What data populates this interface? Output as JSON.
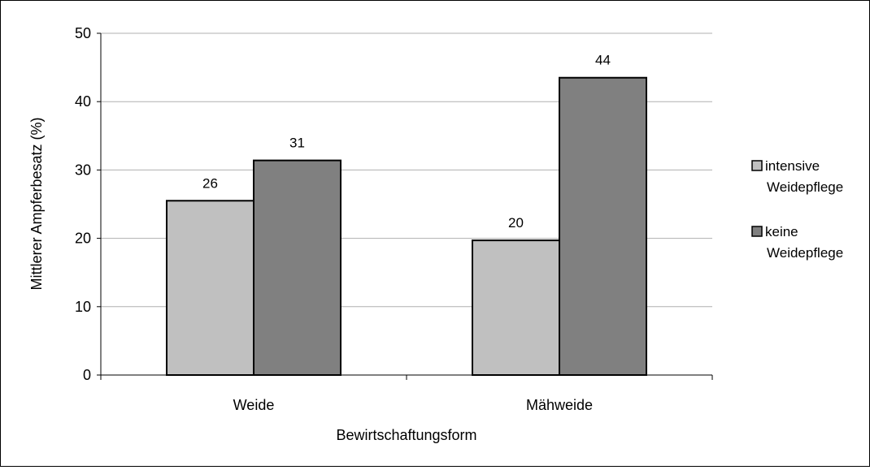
{
  "chart_data": {
    "type": "bar",
    "title": "",
    "xlabel": "Bewirtschaftungsform",
    "ylabel": "Mittlerer Ampferbesatz (%)",
    "categories": [
      "Weide",
      "Mähweide"
    ],
    "series": [
      {
        "name": "intensive Weidepflege",
        "legend_lines": [
          "intensive",
          "Weidepflege"
        ],
        "color": "#c0c0c0",
        "values": [
          25.5,
          19.7
        ],
        "labels": [
          "26",
          "20"
        ]
      },
      {
        "name": "keine Weidepflege",
        "legend_lines": [
          "keine",
          "Weidepflege"
        ],
        "color": "#808080",
        "values": [
          31.4,
          43.5
        ],
        "labels": [
          "31",
          "44"
        ]
      }
    ],
    "ylim": [
      0,
      50
    ],
    "yticks": [
      0,
      10,
      20,
      30,
      40,
      50
    ],
    "grid": true,
    "legend_position": "right"
  }
}
